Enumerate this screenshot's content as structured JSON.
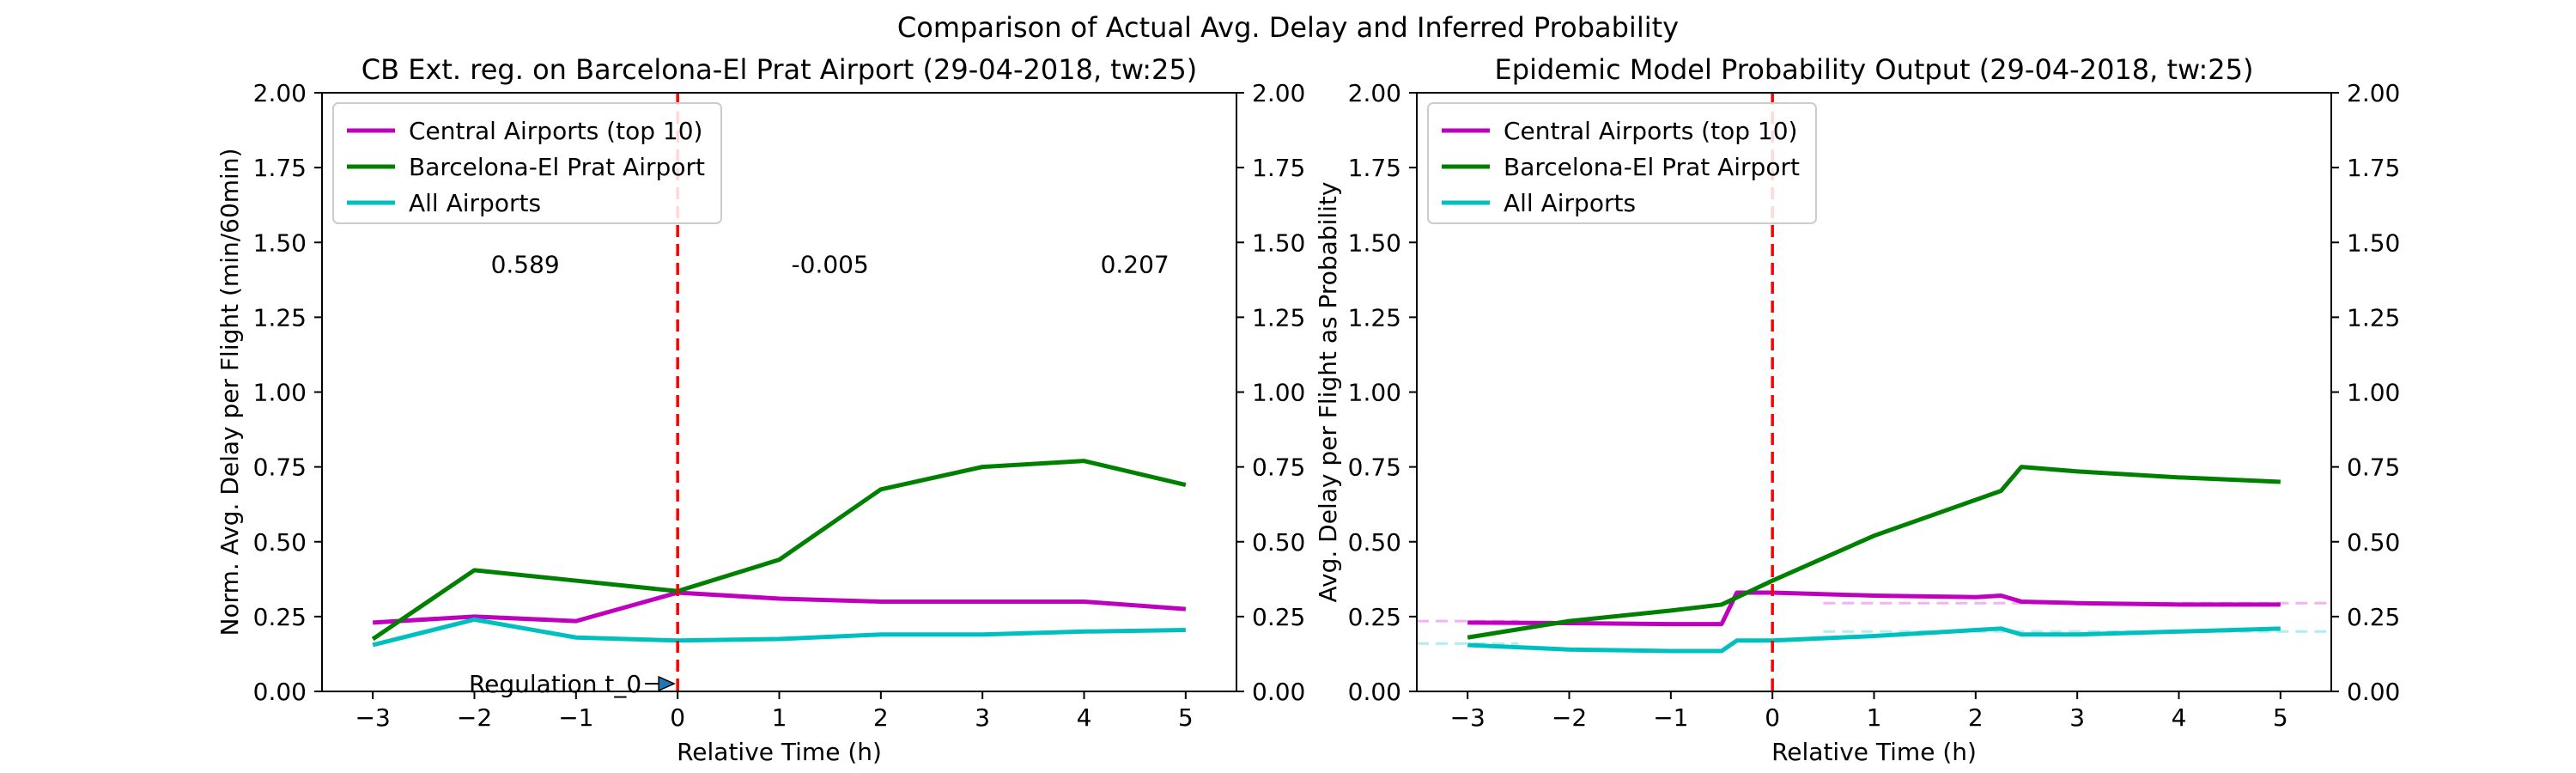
{
  "figure": {
    "suptitle": "Comparison of Actual Avg. Delay and Inferred Probability"
  },
  "chart_data": [
    {
      "type": "line",
      "title": "CB Ext. reg. on Barcelona-El Prat Airport (29-04-2018, tw:25)",
      "xlabel": "Relative Time (h)",
      "ylabel": "Norm. Avg. Delay per Flight (min/60min)",
      "xlim": [
        -3.5,
        5.5
      ],
      "ylim": [
        0,
        2
      ],
      "xticks": [
        "−3",
        "−2",
        "−1",
        "0",
        "1",
        "2",
        "3",
        "4",
        "5"
      ],
      "xtick_values": [
        -3,
        -2,
        -1,
        0,
        1,
        2,
        3,
        4,
        5
      ],
      "yticks": [
        "0.00",
        "0.25",
        "0.50",
        "0.75",
        "1.00",
        "1.25",
        "1.50",
        "1.75",
        "2.00"
      ],
      "ytick_values": [
        0,
        0.25,
        0.5,
        0.75,
        1.0,
        1.25,
        1.5,
        1.75,
        2.0
      ],
      "right_axis_ticks": true,
      "grid": false,
      "legend_position": "top-left",
      "series": [
        {
          "name": "Central Airports (top 10)",
          "color": "#bf00bf",
          "x": [
            -3,
            -2,
            -1,
            0,
            1,
            2,
            3,
            4,
            5
          ],
          "y": [
            0.23,
            0.25,
            0.235,
            0.33,
            0.31,
            0.3,
            0.3,
            0.3,
            0.275
          ]
        },
        {
          "name": "Barcelona-El Prat Airport",
          "color": "#008000",
          "x": [
            -3,
            -2,
            -1,
            0,
            1,
            2,
            3,
            4,
            5
          ],
          "y": [
            0.175,
            0.405,
            0.37,
            0.335,
            0.44,
            0.675,
            0.75,
            0.77,
            0.69
          ]
        },
        {
          "name": "All Airports",
          "color": "#00bfbf",
          "x": [
            -3,
            -2,
            -1,
            0,
            1,
            2,
            3,
            4,
            5
          ],
          "y": [
            0.155,
            0.24,
            0.18,
            0.17,
            0.175,
            0.19,
            0.19,
            0.2,
            0.205
          ]
        }
      ],
      "vline": {
        "x": 0,
        "color": "#ff0000"
      },
      "annotations": [
        {
          "text": "0.589",
          "x": -1.5,
          "y": 1.43
        },
        {
          "text": "-0.005",
          "x": 1.5,
          "y": 1.43
        },
        {
          "text": "0.207",
          "x": 4.5,
          "y": 1.43
        }
      ],
      "regulation_label": {
        "text": "Regulation t_0",
        "x": 0,
        "y": 0.02
      }
    },
    {
      "type": "line",
      "title": "Epidemic Model Probability Output (29-04-2018, tw:25)",
      "xlabel": "Relative Time (h)",
      "ylabel": "Avg. Delay per Flight as Probability",
      "xlim": [
        -3.5,
        5.5
      ],
      "ylim": [
        0,
        2
      ],
      "xticks": [
        "−3",
        "−2",
        "−1",
        "0",
        "1",
        "2",
        "3",
        "4",
        "5"
      ],
      "xtick_values": [
        -3,
        -2,
        -1,
        0,
        1,
        2,
        3,
        4,
        5
      ],
      "yticks": [
        "0.00",
        "0.25",
        "0.50",
        "0.75",
        "1.00",
        "1.25",
        "1.50",
        "1.75",
        "2.00"
      ],
      "ytick_values": [
        0,
        0.25,
        0.5,
        0.75,
        1.0,
        1.25,
        1.5,
        1.75,
        2.0
      ],
      "right_axis_ticks": true,
      "grid": false,
      "legend_position": "top-left",
      "series": [
        {
          "name": "Central Airports (top 10)",
          "color": "#bf00bf",
          "x": [
            -3,
            -2,
            -1,
            -0.5,
            -0.35,
            0,
            1,
            2,
            2.25,
            2.45,
            3,
            4,
            5
          ],
          "y": [
            0.23,
            0.228,
            0.225,
            0.225,
            0.33,
            0.33,
            0.32,
            0.315,
            0.32,
            0.3,
            0.295,
            0.29,
            0.29
          ]
        },
        {
          "name": "Barcelona-El Prat Airport",
          "color": "#008000",
          "x": [
            -3,
            -2,
            -1,
            -0.5,
            0,
            1,
            2,
            2.25,
            2.45,
            3,
            4,
            5
          ],
          "y": [
            0.18,
            0.235,
            0.27,
            0.29,
            0.37,
            0.52,
            0.64,
            0.67,
            0.75,
            0.735,
            0.715,
            0.7
          ]
        },
        {
          "name": "All Airports",
          "color": "#00bfbf",
          "x": [
            -3,
            -2,
            -1,
            -0.5,
            -0.35,
            0,
            1,
            2,
            2.25,
            2.45,
            3,
            4,
            5
          ],
          "y": [
            0.155,
            0.14,
            0.135,
            0.135,
            0.17,
            0.17,
            0.185,
            0.205,
            0.21,
            0.19,
            0.19,
            0.2,
            0.21
          ]
        }
      ],
      "dashed_series": [
        {
          "color": "#f2b3f2",
          "x": [
            -3.5,
            -2.5
          ],
          "y": [
            0.235,
            0.235
          ]
        },
        {
          "color": "#f2b3f2",
          "x": [
            0.5,
            5.5
          ],
          "y": [
            0.295,
            0.295
          ]
        },
        {
          "color": "#b3ecec",
          "x": [
            -3.5,
            -2.5
          ],
          "y": [
            0.16,
            0.16
          ]
        },
        {
          "color": "#b3ecec",
          "x": [
            0.5,
            5.5
          ],
          "y": [
            0.2,
            0.2
          ]
        }
      ],
      "vline": {
        "x": 0,
        "color": "#ff0000"
      }
    }
  ]
}
